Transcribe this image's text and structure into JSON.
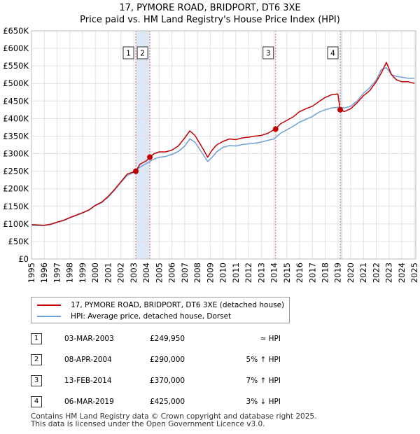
{
  "colors": {
    "price_line": "#c00000",
    "hpi_line": "#6f9fd8",
    "shade": "#dce8f8",
    "vline": "#e06666",
    "grid": "#e0e0e0"
  },
  "chart_data": {
    "type": "line",
    "title": "17, PYMORE ROAD, BRIDPORT, DT6 3XE",
    "subtitle": "Price paid vs. HM Land Registry's House Price Index (HPI)",
    "xlim": [
      1995,
      2025.1
    ],
    "ylim": [
      0,
      650000
    ],
    "x_ticks": [
      1995,
      1996,
      1997,
      1998,
      1999,
      2000,
      2001,
      2002,
      2003,
      2004,
      2005,
      2006,
      2007,
      2008,
      2009,
      2010,
      2011,
      2012,
      2013,
      2014,
      2015,
      2016,
      2017,
      2018,
      2019,
      2020,
      2021,
      2022,
      2023,
      2024,
      2025
    ],
    "x_tick_labels": [
      "1995",
      "1996",
      "1997",
      "1998",
      "1999",
      "2000",
      "2001",
      "2002",
      "2003",
      "2004",
      "2005",
      "2006",
      "2007",
      "2008",
      "2009",
      "2010",
      "2011",
      "2012",
      "2013",
      "2014",
      "2015",
      "2016",
      "2017",
      "2018",
      "2019",
      "2020",
      "2021",
      "2022",
      "2023",
      "2024",
      "2025"
    ],
    "y_ticks": [
      0,
      50000,
      100000,
      150000,
      200000,
      250000,
      300000,
      350000,
      400000,
      450000,
      500000,
      550000,
      600000,
      650000
    ],
    "y_tick_labels": [
      "£0",
      "£50K",
      "£100K",
      "£150K",
      "£200K",
      "£250K",
      "£300K",
      "£350K",
      "£400K",
      "£450K",
      "£500K",
      "£550K",
      "£600K",
      "£650K"
    ],
    "shaded_regions": [
      [
        2003.17,
        2004.27
      ],
      [
        2019.18,
        2019.35
      ]
    ],
    "series": [
      {
        "name": "17, PYMORE ROAD, BRIDPORT, DT6 3XE (detached house)",
        "x": [
          1995,
          1995.5,
          1996,
          1996.5,
          1997,
          1997.5,
          1998,
          1998.5,
          1999,
          1999.5,
          2000,
          2000.5,
          2001,
          2001.5,
          2002,
          2002.5,
          2003,
          2003.17,
          2003.5,
          2004,
          2004.27,
          2004.6,
          2005,
          2005.5,
          2006,
          2006.5,
          2007,
          2007.4,
          2007.8,
          2008.3,
          2008.8,
          2009.1,
          2009.5,
          2010,
          2010.5,
          2011,
          2011.5,
          2012,
          2012.5,
          2013,
          2013.5,
          2014.0,
          2014.12,
          2014.5,
          2015,
          2015.5,
          2016,
          2016.5,
          2017,
          2017.5,
          2018,
          2018.5,
          2019.0,
          2019.18,
          2019.5,
          2020,
          2020.5,
          2021,
          2021.5,
          2022,
          2022.4,
          2022.8,
          2023.2,
          2023.6,
          2024,
          2024.5,
          2025
        ],
        "values": [
          98000,
          97000,
          96000,
          99000,
          105000,
          110000,
          118000,
          125000,
          132000,
          140000,
          153000,
          162000,
          178000,
          198000,
          220000,
          242000,
          248000,
          249950,
          270000,
          280000,
          290000,
          300000,
          305000,
          305000,
          310000,
          322000,
          345000,
          365000,
          352000,
          322000,
          290000,
          308000,
          325000,
          335000,
          342000,
          340000,
          345000,
          347000,
          350000,
          352000,
          358000,
          368000,
          370000,
          385000,
          395000,
          405000,
          420000,
          428000,
          435000,
          448000,
          460000,
          468000,
          470000,
          425000,
          420000,
          428000,
          445000,
          465000,
          480000,
          505000,
          530000,
          560000,
          525000,
          510000,
          505000,
          505000,
          500000
        ]
      },
      {
        "name": "HPI: Average price, detached house, Dorset",
        "x": [
          1995,
          1995.5,
          1996,
          1996.5,
          1997,
          1997.5,
          1998,
          1998.5,
          1999,
          1999.5,
          2000,
          2000.5,
          2001,
          2001.5,
          2002,
          2002.5,
          2003,
          2003.5,
          2004,
          2004.5,
          2005,
          2005.5,
          2006,
          2006.5,
          2007,
          2007.4,
          2007.8,
          2008.3,
          2008.8,
          2009.1,
          2009.5,
          2010,
          2010.5,
          2011,
          2011.5,
          2012,
          2012.5,
          2013,
          2013.5,
          2014,
          2014.5,
          2015,
          2015.5,
          2016,
          2016.5,
          2017,
          2017.5,
          2018,
          2018.5,
          2019,
          2019.5,
          2020,
          2020.5,
          2021,
          2021.5,
          2022,
          2022.4,
          2022.8,
          2023.2,
          2023.6,
          2024,
          2024.5,
          2025
        ],
        "values": [
          96000,
          95000,
          95500,
          98000,
          104000,
          109000,
          117000,
          124000,
          131000,
          139000,
          152000,
          161000,
          176000,
          196000,
          218000,
          238000,
          246000,
          262000,
          272000,
          283000,
          290000,
          292000,
          298000,
          306000,
          322000,
          342000,
          333000,
          305000,
          278000,
          288000,
          305000,
          318000,
          323000,
          322000,
          326000,
          328000,
          330000,
          333000,
          338000,
          342000,
          358000,
          368000,
          378000,
          390000,
          398000,
          406000,
          418000,
          425000,
          430000,
          432000,
          430000,
          435000,
          450000,
          472000,
          488000,
          510000,
          540000,
          545000,
          525000,
          520000,
          518000,
          515000,
          515000
        ]
      }
    ],
    "sale_markers": [
      {
        "n": "1",
        "x": 2003.17,
        "y": 249950
      },
      {
        "n": "2",
        "x": 2004.27,
        "y": 290000
      },
      {
        "n": "3",
        "x": 2014.12,
        "y": 370000
      },
      {
        "n": "4",
        "x": 2019.18,
        "y": 425000
      }
    ]
  },
  "legend": {
    "item1": "17, PYMORE ROAD, BRIDPORT, DT6 3XE (detached house)",
    "item2": "HPI: Average price, detached house, Dorset"
  },
  "sales": [
    {
      "n": "1",
      "date": "03-MAR-2003",
      "price": "£249,950",
      "hpi": "≈ HPI"
    },
    {
      "n": "2",
      "date": "08-APR-2004",
      "price": "£290,000",
      "hpi": "5% ↑ HPI"
    },
    {
      "n": "3",
      "date": "13-FEB-2014",
      "price": "£370,000",
      "hpi": "7% ↑ HPI"
    },
    {
      "n": "4",
      "date": "06-MAR-2019",
      "price": "£425,000",
      "hpi": "3% ↓ HPI"
    }
  ],
  "footer": {
    "line1": "Contains HM Land Registry data © Crown copyright and database right 2025.",
    "line2": "This data is licensed under the Open Government Licence v3.0."
  }
}
